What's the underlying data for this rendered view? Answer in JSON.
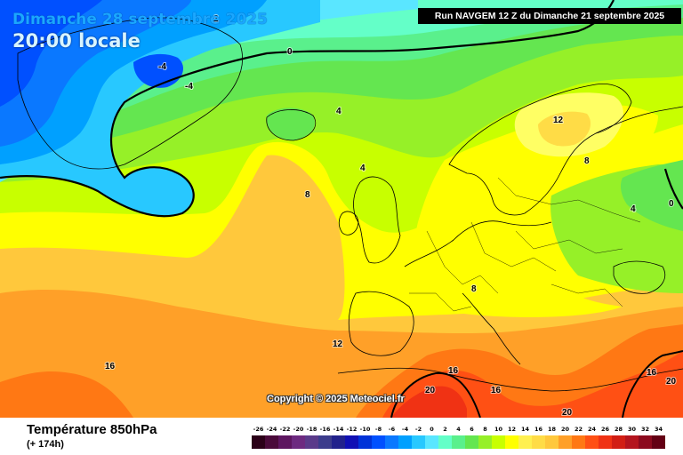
{
  "header": {
    "date_line": "Dimanche 28 septembre 2025",
    "time_line": "20:00 locale",
    "run_info": "Run NAVGEM 12 Z du Dimanche 21 septembre 2025"
  },
  "map": {
    "copyright": "Copyright © 2025 Meteociel.fr",
    "isotherm_labels": [
      "2",
      "-4",
      "-4",
      "0",
      "4",
      "4",
      "8",
      "12",
      "8",
      "4",
      "0",
      "8",
      "12",
      "16",
      "16",
      "16",
      "20",
      "20",
      "20",
      "16"
    ]
  },
  "footer": {
    "variable": "Température 850hPa",
    "lead_time": "(+ 174h)"
  },
  "legend": {
    "ticks": [
      "-26",
      "-24",
      "-22",
      "-20",
      "-18",
      "-16",
      "-14",
      "-12",
      "-10",
      "-8",
      "-6",
      "-4",
      "-2",
      "0",
      "2",
      "4",
      "6",
      "8",
      "10",
      "12",
      "14",
      "16",
      "18",
      "20",
      "22",
      "24",
      "26",
      "28",
      "30",
      "32",
      "34"
    ],
    "colors": [
      "#2b0018",
      "#4a0a3a",
      "#5e1660",
      "#6d2a80",
      "#5a3a8a",
      "#3c3c8c",
      "#22228c",
      "#1010b4",
      "#0032d8",
      "#0050ff",
      "#0a78ff",
      "#00a0ff",
      "#28c8ff",
      "#5ae6ff",
      "#64ffc8",
      "#5af08c",
      "#64e650",
      "#96f028",
      "#c8ff00",
      "#ffff00",
      "#fff050",
      "#ffdc46",
      "#ffc83c",
      "#ffa028",
      "#ff7814",
      "#ff5014",
      "#f03214",
      "#d21e14",
      "#b4141e",
      "#8c0a1e",
      "#640014"
    ]
  }
}
